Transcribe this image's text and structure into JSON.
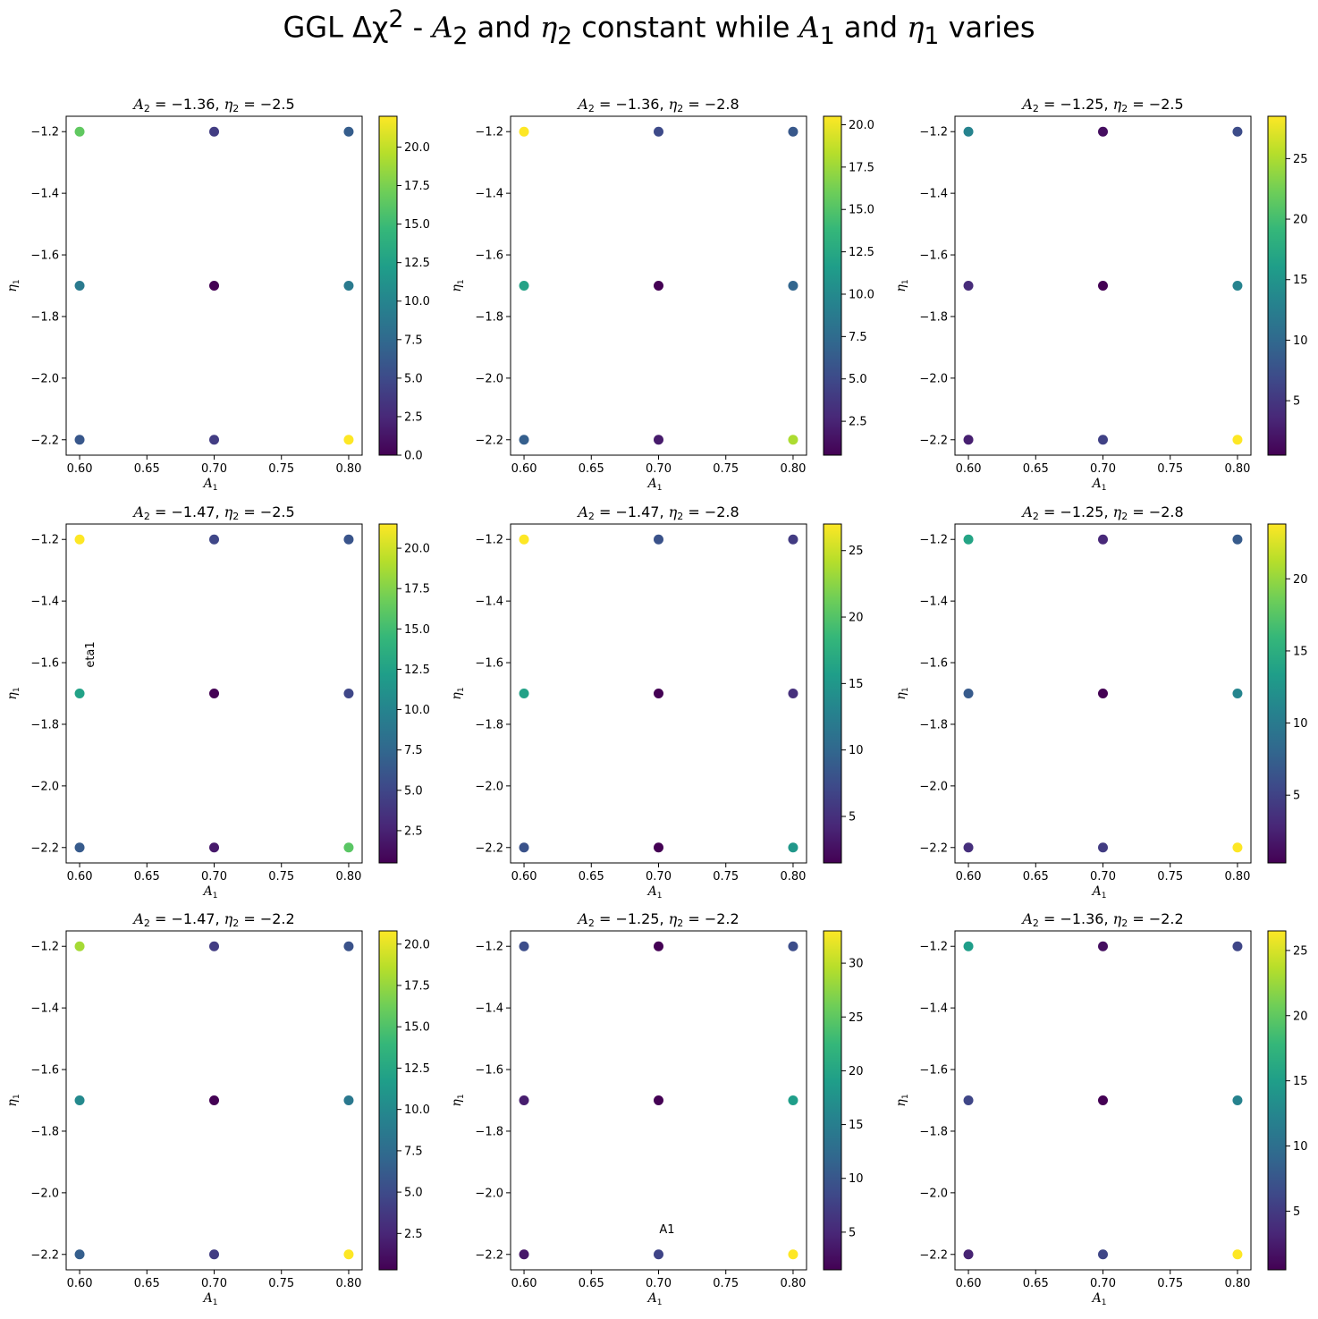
{
  "figure": {
    "title": {
      "pre": "GGL Δχ",
      "sup": "2",
      "mid1": " - ",
      "a2": "A",
      "a2sub": "2",
      "mid2": " and ",
      "e2": "η",
      "e2sub": "2",
      "mid3": " constant while ",
      "a1": "A",
      "a1sub": "1",
      "mid4": " and ",
      "e1": "η",
      "e1sub": "1",
      "post": " varies"
    },
    "colormap": "viridis",
    "colormap_stops": [
      "#440154",
      "#482878",
      "#3e4989",
      "#31688e",
      "#26828e",
      "#1f9e89",
      "#35b779",
      "#6ece58",
      "#b5de2b",
      "#fde725"
    ],
    "marker_size": 8
  },
  "chart_data": [
    {
      "type": "scatter",
      "title": "A_2 = -1.36, η_2 = -2.5",
      "title_a": "-1.36",
      "title_e": "-2.5",
      "xlabel": "A_1",
      "ylabel": "η_1",
      "xlim": [
        0.59,
        0.81
      ],
      "ylim": [
        -2.25,
        -1.15
      ],
      "xticks": [
        "0.60",
        "0.65",
        "0.70",
        "0.75",
        "0.80"
      ],
      "yticks": [
        "-1.2",
        "-1.4",
        "-1.6",
        "-1.8",
        "-2.0",
        "-2.2"
      ],
      "colorbar": {
        "min": 0,
        "max": 22,
        "ticks": [
          "0.0",
          "2.5",
          "5.0",
          "7.5",
          "10.0",
          "12.5",
          "15.0",
          "17.5",
          "20.0"
        ]
      },
      "points": [
        {
          "x": 0.6,
          "y": -1.2,
          "c": 16.5
        },
        {
          "x": 0.7,
          "y": -1.2,
          "c": 4
        },
        {
          "x": 0.8,
          "y": -1.2,
          "c": 6.5
        },
        {
          "x": 0.6,
          "y": -1.7,
          "c": 9
        },
        {
          "x": 0.7,
          "y": -1.7,
          "c": 0
        },
        {
          "x": 0.8,
          "y": -1.7,
          "c": 9
        },
        {
          "x": 0.6,
          "y": -2.2,
          "c": 6
        },
        {
          "x": 0.7,
          "y": -2.2,
          "c": 4
        },
        {
          "x": 0.8,
          "y": -2.2,
          "c": 22
        }
      ]
    },
    {
      "type": "scatter",
      "title": "A_2 = -1.36, η_2 = -2.8",
      "title_a": "-1.36",
      "title_e": "-2.8",
      "xlabel": "A_1",
      "ylabel": "η_1",
      "xlim": [
        0.59,
        0.81
      ],
      "ylim": [
        -2.25,
        -1.15
      ],
      "xticks": [
        "0.60",
        "0.65",
        "0.70",
        "0.75",
        "0.80"
      ],
      "yticks": [
        "-1.2",
        "-1.4",
        "-1.6",
        "-1.8",
        "-2.0",
        "-2.2"
      ],
      "colorbar": {
        "min": 0.5,
        "max": 20.5,
        "ticks": [
          "2.5",
          "5.0",
          "7.5",
          "10.0",
          "12.5",
          "15.0",
          "17.5",
          "20.0"
        ]
      },
      "points": [
        {
          "x": 0.6,
          "y": -1.2,
          "c": 20.5
        },
        {
          "x": 0.7,
          "y": -1.2,
          "c": 5
        },
        {
          "x": 0.8,
          "y": -1.2,
          "c": 6
        },
        {
          "x": 0.6,
          "y": -1.7,
          "c": 12
        },
        {
          "x": 0.7,
          "y": -1.7,
          "c": 0.5
        },
        {
          "x": 0.8,
          "y": -1.7,
          "c": 7
        },
        {
          "x": 0.6,
          "y": -2.2,
          "c": 6.5
        },
        {
          "x": 0.7,
          "y": -2.2,
          "c": 2
        },
        {
          "x": 0.8,
          "y": -2.2,
          "c": 18
        }
      ]
    },
    {
      "type": "scatter",
      "title": "A_2 = -1.25, η_2 = -2.5",
      "title_a": "-1.25",
      "title_e": "-2.5",
      "xlabel": "A_1",
      "ylabel": "η_1",
      "xlim": [
        0.59,
        0.81
      ],
      "ylim": [
        -2.25,
        -1.15
      ],
      "xticks": [
        "0.60",
        "0.65",
        "0.70",
        "0.75",
        "0.80"
      ],
      "yticks": [
        "-1.2",
        "-1.4",
        "-1.6",
        "-1.8",
        "-2.0",
        "-2.2"
      ],
      "colorbar": {
        "min": 0.5,
        "max": 28.5,
        "ticks": [
          "5",
          "10",
          "15",
          "20",
          "25"
        ]
      },
      "points": [
        {
          "x": 0.6,
          "y": -1.2,
          "c": 13
        },
        {
          "x": 0.7,
          "y": -1.2,
          "c": 1.5
        },
        {
          "x": 0.8,
          "y": -1.2,
          "c": 7
        },
        {
          "x": 0.6,
          "y": -1.7,
          "c": 4
        },
        {
          "x": 0.7,
          "y": -1.7,
          "c": 0.5
        },
        {
          "x": 0.8,
          "y": -1.7,
          "c": 13
        },
        {
          "x": 0.6,
          "y": -2.2,
          "c": 3
        },
        {
          "x": 0.7,
          "y": -2.2,
          "c": 6
        },
        {
          "x": 0.8,
          "y": -2.2,
          "c": 28.5
        }
      ]
    },
    {
      "type": "scatter",
      "title": "A_2 = -1.47, η_2 = -2.5",
      "title_a": "-1.47",
      "title_e": "-2.5",
      "xlabel": "A_1",
      "ylabel": "η_1",
      "xlim": [
        0.59,
        0.81
      ],
      "ylim": [
        -2.25,
        -1.15
      ],
      "xticks": [
        "0.60",
        "0.65",
        "0.70",
        "0.75",
        "0.80"
      ],
      "yticks": [
        "-1.2",
        "-1.4",
        "-1.6",
        "-1.8",
        "-2.0",
        "-2.2"
      ],
      "colorbar": {
        "min": 0.5,
        "max": 21.5,
        "ticks": [
          "2.5",
          "5.0",
          "7.5",
          "10.0",
          "12.5",
          "15.0",
          "17.5",
          "20.0"
        ]
      },
      "annotation": "eta1",
      "points": [
        {
          "x": 0.6,
          "y": -1.2,
          "c": 21.5
        },
        {
          "x": 0.7,
          "y": -1.2,
          "c": 5
        },
        {
          "x": 0.8,
          "y": -1.2,
          "c": 6
        },
        {
          "x": 0.6,
          "y": -1.7,
          "c": 12.5
        },
        {
          "x": 0.7,
          "y": -1.7,
          "c": 0.5
        },
        {
          "x": 0.8,
          "y": -1.7,
          "c": 5
        },
        {
          "x": 0.6,
          "y": -2.2,
          "c": 6.5
        },
        {
          "x": 0.7,
          "y": -2.2,
          "c": 2
        },
        {
          "x": 0.8,
          "y": -2.2,
          "c": 16
        }
      ]
    },
    {
      "type": "scatter",
      "title": "A_2 = -1.47, η_2 = -2.8",
      "title_a": "-1.47",
      "title_e": "-2.8",
      "xlabel": "A_1",
      "ylabel": "η_1",
      "xlim": [
        0.59,
        0.81
      ],
      "ylim": [
        -2.25,
        -1.15
      ],
      "xticks": [
        "0.60",
        "0.65",
        "0.70",
        "0.75",
        "0.80"
      ],
      "yticks": [
        "-1.2",
        "-1.4",
        "-1.6",
        "-1.8",
        "-2.0",
        "-2.2"
      ],
      "colorbar": {
        "min": 1.5,
        "max": 27,
        "ticks": [
          "5",
          "10",
          "15",
          "20",
          "25"
        ]
      },
      "points": [
        {
          "x": 0.6,
          "y": -1.2,
          "c": 27
        },
        {
          "x": 0.7,
          "y": -1.2,
          "c": 8
        },
        {
          "x": 0.8,
          "y": -1.2,
          "c": 6
        },
        {
          "x": 0.6,
          "y": -1.7,
          "c": 16
        },
        {
          "x": 0.7,
          "y": -1.7,
          "c": 1.5
        },
        {
          "x": 0.8,
          "y": -1.7,
          "c": 5
        },
        {
          "x": 0.6,
          "y": -2.2,
          "c": 8
        },
        {
          "x": 0.7,
          "y": -2.2,
          "c": 1.5
        },
        {
          "x": 0.8,
          "y": -2.2,
          "c": 15
        }
      ]
    },
    {
      "type": "scatter",
      "title": "A_2 = -1.25, η_2 = -2.8",
      "title_a": "-1.25",
      "title_e": "-2.8",
      "xlabel": "A_1",
      "ylabel": "η_1",
      "xlim": [
        0.59,
        0.81
      ],
      "ylim": [
        -2.25,
        -1.15
      ],
      "xticks": [
        "0.60",
        "0.65",
        "0.70",
        "0.75",
        "0.80"
      ],
      "yticks": [
        "-1.2",
        "-1.4",
        "-1.6",
        "-1.8",
        "-2.0",
        "-2.2"
      ],
      "colorbar": {
        "min": 0.3,
        "max": 23.8,
        "ticks": [
          "5",
          "10",
          "15",
          "20"
        ]
      },
      "points": [
        {
          "x": 0.6,
          "y": -1.2,
          "c": 14
        },
        {
          "x": 0.7,
          "y": -1.2,
          "c": 3
        },
        {
          "x": 0.8,
          "y": -1.2,
          "c": 7
        },
        {
          "x": 0.6,
          "y": -1.7,
          "c": 7
        },
        {
          "x": 0.7,
          "y": -1.7,
          "c": 0.3
        },
        {
          "x": 0.8,
          "y": -1.7,
          "c": 11
        },
        {
          "x": 0.6,
          "y": -2.2,
          "c": 3.5
        },
        {
          "x": 0.7,
          "y": -2.2,
          "c": 4.5
        },
        {
          "x": 0.8,
          "y": -2.2,
          "c": 23.8
        }
      ]
    },
    {
      "type": "scatter",
      "title": "A_2 = -1.47, η_2 = -2.2",
      "title_a": "-1.47",
      "title_e": "-2.2",
      "xlabel": "A_1",
      "ylabel": "η_1",
      "xlim": [
        0.59,
        0.81
      ],
      "ylim": [
        -2.25,
        -1.15
      ],
      "xticks": [
        "0.60",
        "0.65",
        "0.70",
        "0.75",
        "0.80"
      ],
      "yticks": [
        "-1.2",
        "-1.4",
        "-1.6",
        "-1.8",
        "-2.0",
        "-2.2"
      ],
      "colorbar": {
        "min": 0.3,
        "max": 20.8,
        "ticks": [
          "2.5",
          "5.0",
          "7.5",
          "10.0",
          "12.5",
          "15.0",
          "17.5",
          "20.0"
        ]
      },
      "points": [
        {
          "x": 0.6,
          "y": -1.2,
          "c": 18
        },
        {
          "x": 0.7,
          "y": -1.2,
          "c": 4
        },
        {
          "x": 0.8,
          "y": -1.2,
          "c": 5.5
        },
        {
          "x": 0.6,
          "y": -1.7,
          "c": 10
        },
        {
          "x": 0.7,
          "y": -1.7,
          "c": 0.3
        },
        {
          "x": 0.8,
          "y": -1.7,
          "c": 8.5
        },
        {
          "x": 0.6,
          "y": -2.2,
          "c": 6.5
        },
        {
          "x": 0.7,
          "y": -2.2,
          "c": 4
        },
        {
          "x": 0.8,
          "y": -2.2,
          "c": 20.8
        }
      ]
    },
    {
      "type": "scatter",
      "title": "A_2 = -1.25, η_2 = -2.2",
      "title_a": "-1.25",
      "title_e": "-2.2",
      "xlabel": "A_1",
      "ylabel": "η_1",
      "xlim": [
        0.59,
        0.81
      ],
      "ylim": [
        -2.25,
        -1.15
      ],
      "xticks": [
        "0.60",
        "0.65",
        "0.70",
        "0.75",
        "0.80"
      ],
      "yticks": [
        "-1.2",
        "-1.4",
        "-1.6",
        "-1.8",
        "-2.0",
        "-2.2"
      ],
      "colorbar": {
        "min": 1.5,
        "max": 33,
        "ticks": [
          "5",
          "10",
          "15",
          "20",
          "25",
          "30"
        ]
      },
      "annotation": "A1",
      "points": [
        {
          "x": 0.6,
          "y": -1.2,
          "c": 9
        },
        {
          "x": 0.7,
          "y": -1.2,
          "c": 1.5
        },
        {
          "x": 0.8,
          "y": -1.2,
          "c": 9
        },
        {
          "x": 0.6,
          "y": -1.7,
          "c": 4
        },
        {
          "x": 0.7,
          "y": -1.7,
          "c": 1.5
        },
        {
          "x": 0.8,
          "y": -1.7,
          "c": 19
        },
        {
          "x": 0.6,
          "y": -2.2,
          "c": 3.5
        },
        {
          "x": 0.7,
          "y": -2.2,
          "c": 8
        },
        {
          "x": 0.8,
          "y": -2.2,
          "c": 33
        }
      ]
    },
    {
      "type": "scatter",
      "title": "A_2 = -1.36, η_2 = -2.2",
      "title_a": "-1.36",
      "title_e": "-2.2",
      "xlabel": "A_1",
      "ylabel": "η_1",
      "xlim": [
        0.59,
        0.81
      ],
      "ylim": [
        -2.25,
        -1.15
      ],
      "xticks": [
        "0.60",
        "0.65",
        "0.70",
        "0.75",
        "0.80"
      ],
      "yticks": [
        "-1.2",
        "-1.4",
        "-1.6",
        "-1.8",
        "-2.0",
        "-2.2"
      ],
      "colorbar": {
        "min": 0.5,
        "max": 26.5,
        "ticks": [
          "5",
          "10",
          "15",
          "20",
          "25"
        ]
      },
      "points": [
        {
          "x": 0.6,
          "y": -1.2,
          "c": 15
        },
        {
          "x": 0.7,
          "y": -1.2,
          "c": 1.5
        },
        {
          "x": 0.8,
          "y": -1.2,
          "c": 6
        },
        {
          "x": 0.6,
          "y": -1.7,
          "c": 6
        },
        {
          "x": 0.7,
          "y": -1.7,
          "c": 0.5
        },
        {
          "x": 0.8,
          "y": -1.7,
          "c": 12
        },
        {
          "x": 0.6,
          "y": -2.2,
          "c": 3
        },
        {
          "x": 0.7,
          "y": -2.2,
          "c": 6
        },
        {
          "x": 0.8,
          "y": -2.2,
          "c": 26.5
        }
      ]
    }
  ]
}
